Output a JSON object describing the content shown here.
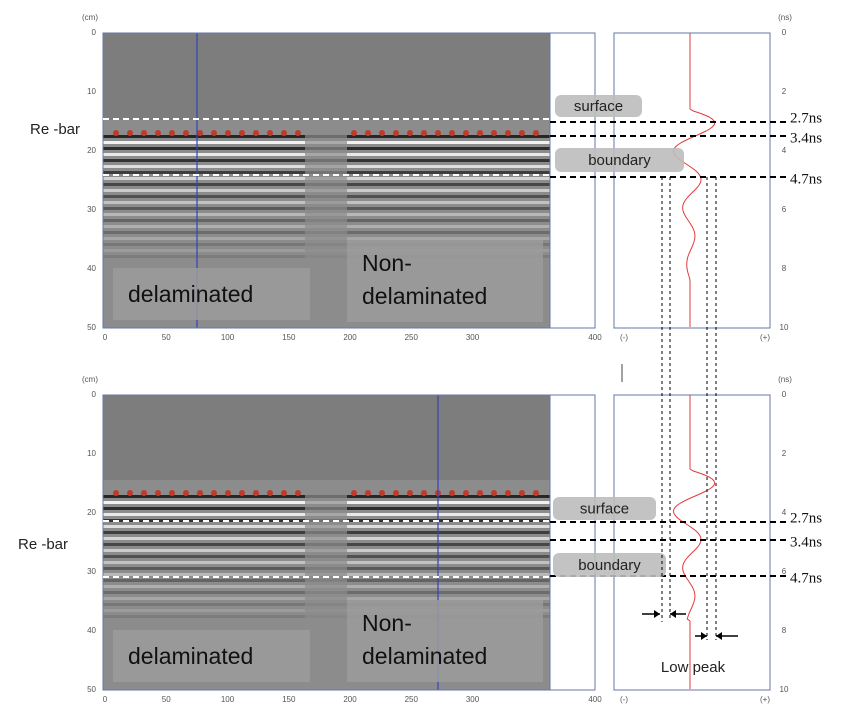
{
  "panels": [
    {
      "y_unit": "(cm)",
      "y_ticks": [
        "0",
        "10",
        "20",
        "30",
        "40",
        "50"
      ],
      "x_ticks": [
        "0",
        "50",
        "100",
        "150",
        "200",
        "250",
        "300",
        "400"
      ],
      "wave_unit": "(ns)",
      "wave_ticks": [
        "0",
        "2",
        "4",
        "6",
        "8",
        "10"
      ],
      "wave_min": "(-)",
      "wave_max": "(+)",
      "rebar": "Re -bar",
      "surface": "surface",
      "boundary": "boundary",
      "times": [
        "2.7ns",
        "3.4ns",
        "4.7ns"
      ],
      "left_label": "delaminated",
      "right_label": [
        "Non-",
        "delaminated"
      ]
    },
    {
      "y_unit": "(cm)",
      "y_ticks": [
        "0",
        "10",
        "20",
        "30",
        "40",
        "50"
      ],
      "x_ticks": [
        "0",
        "50",
        "100",
        "150",
        "200",
        "250",
        "300",
        "400"
      ],
      "wave_unit": "(ns)",
      "wave_ticks": [
        "0",
        "2",
        "4",
        "6",
        "8",
        "10"
      ],
      "wave_min": "(-)",
      "wave_max": "(+)",
      "rebar": "Re -bar",
      "surface": "surface",
      "boundary": "boundary",
      "times": [
        "2.7ns",
        "3.4ns",
        "4.7ns"
      ],
      "left_label": "delaminated",
      "right_label": [
        "Non-",
        "delaminated"
      ],
      "note": "Low peak"
    }
  ]
}
